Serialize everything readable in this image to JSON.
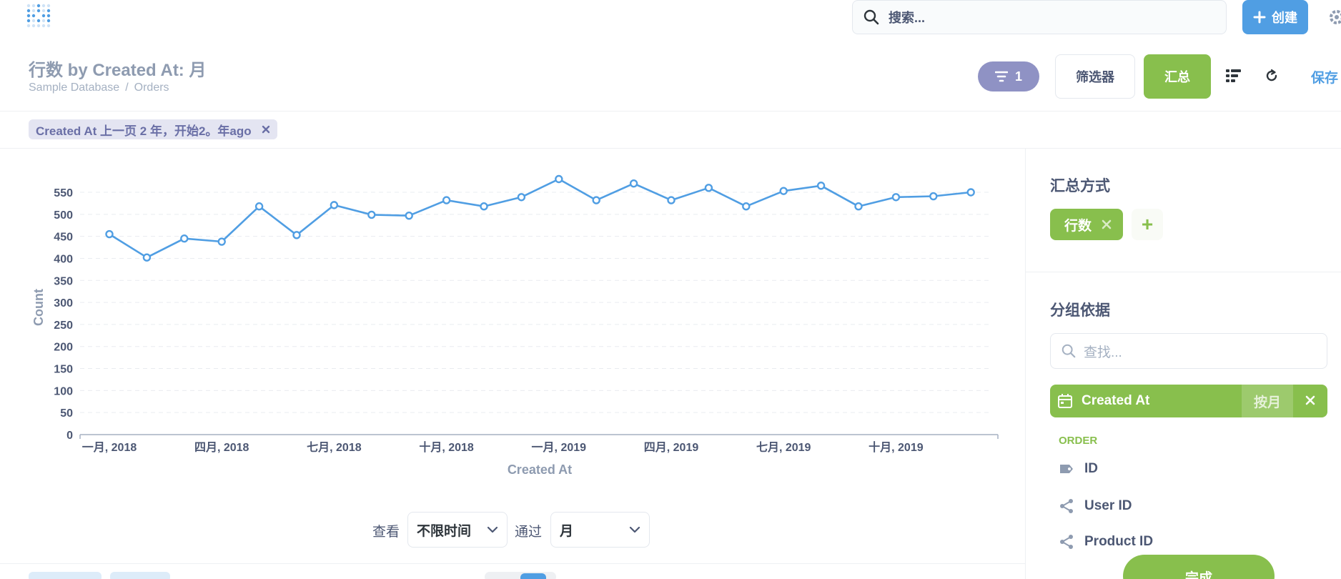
{
  "navbar": {
    "search_placeholder": "搜索...",
    "create_label": "创建"
  },
  "header": {
    "title": "行数 by Created At: 月",
    "breadcrumb": [
      "Sample Database",
      "Orders"
    ],
    "filter_count": "1",
    "filter_button": "筛选器",
    "summarize_button": "汇总",
    "save_label": "保存"
  },
  "filter_pill": {
    "label": "Created At 上一页 2 年，开始2。年ago"
  },
  "chart_data": {
    "type": "line",
    "xlabel": "Created At",
    "ylabel": "Count",
    "ylim": [
      0,
      550
    ],
    "yticks": [
      0,
      50,
      100,
      150,
      200,
      250,
      300,
      350,
      400,
      450,
      500,
      550
    ],
    "xtick_labels": [
      "一月, 2018",
      "四月, 2018",
      "七月, 2018",
      "十月, 2018",
      "一月, 2019",
      "四月, 2019",
      "七月, 2019",
      "十月, 2019"
    ],
    "xtick_index": [
      0,
      3,
      6,
      9,
      12,
      15,
      18,
      21
    ],
    "grid": true,
    "color": "#509ee3",
    "values": [
      455,
      402,
      445,
      438,
      518,
      453,
      521,
      499,
      497,
      532,
      518,
      539,
      580,
      532,
      570,
      532,
      560,
      518,
      553,
      565,
      518,
      539,
      541,
      550
    ]
  },
  "view_controls": {
    "view_label": "查看",
    "time_range": "不限时间",
    "by_label": "通过",
    "granularity": "月"
  },
  "sidebar": {
    "summarize_heading": "汇总方式",
    "metric": "行数",
    "group_heading": "分组依据",
    "search_placeholder": "查找...",
    "active_dimension": "Created At",
    "active_bucket": "按月",
    "table_name": "ORDER",
    "fields": [
      "ID",
      "User ID",
      "Product ID"
    ],
    "done_label": "完成"
  }
}
